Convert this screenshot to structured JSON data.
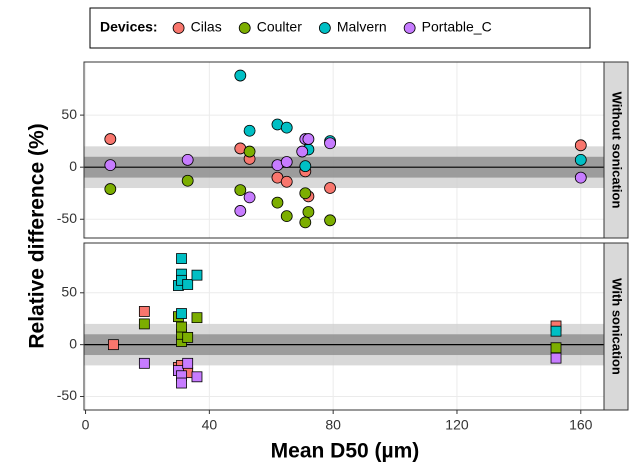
{
  "chart_data": {
    "type": "scatter",
    "legend_title": "Devices:",
    "x_label": "Mean D50 (µm)",
    "y_label": "Relative difference (%)",
    "xlim": [
      -0.5,
      167.5
    ],
    "xticks": [
      0,
      40,
      80,
      120,
      160
    ],
    "reference_bands": [
      20,
      10
    ],
    "reference_line": 0,
    "grid": true,
    "panels": [
      {
        "strip": "Without sonication",
        "marker": "circle",
        "ylim": [
          -68,
          101
        ],
        "yticks": [
          -50,
          0,
          50
        ],
        "series": [
          {
            "name": "Cilas",
            "color": "#F8766D",
            "x": [
              8,
              50,
              53,
              62,
              65,
              71,
              72,
              79,
              160
            ],
            "y": [
              27,
              18,
              8,
              -10,
              -14,
              -4,
              -28,
              -20,
              21
            ]
          },
          {
            "name": "Coulter",
            "color": "#7CAE00",
            "x": [
              8,
              33,
              50,
              53,
              62,
              65,
              71,
              71,
              72,
              79
            ],
            "y": [
              -21,
              -13,
              -22,
              15,
              -34,
              -47,
              -25,
              -53,
              -43,
              -51
            ]
          },
          {
            "name": "Malvern",
            "color": "#00BFC4",
            "x": [
              50,
              53,
              62,
              65,
              71,
              72,
              79,
              160
            ],
            "y": [
              88,
              35,
              41,
              38,
              1,
              17,
              25,
              7
            ]
          },
          {
            "name": "Portable_C",
            "color": "#C77CFF",
            "x": [
              8,
              33,
              50,
              53,
              62,
              65,
              70,
              71,
              72,
              79,
              160
            ],
            "y": [
              2,
              7,
              -42,
              -29,
              2,
              5,
              15,
              27,
              27,
              23,
              -10
            ]
          }
        ]
      },
      {
        "strip": "With sonication",
        "marker": "square",
        "ylim": [
          -63,
          98
        ],
        "yticks": [
          -50,
          0,
          50
        ],
        "series": [
          {
            "name": "Cilas",
            "color": "#F8766D",
            "x": [
              9,
              19,
              30,
              31,
              33,
              152
            ],
            "y": [
              0,
              32,
              -22,
              -20,
              -27,
              18
            ]
          },
          {
            "name": "Coulter",
            "color": "#7CAE00",
            "x": [
              19,
              30,
              31,
              31,
              31,
              33,
              36,
              152
            ],
            "y": [
              20,
              27,
              3,
              10,
              17,
              7,
              26,
              -3
            ]
          },
          {
            "name": "Malvern",
            "color": "#00BFC4",
            "x": [
              30,
              31,
              31,
              31,
              31,
              33,
              36,
              152
            ],
            "y": [
              57,
              83,
              68,
              62,
              30,
              58,
              67,
              13
            ]
          },
          {
            "name": "Portable_C",
            "color": "#C77CFF",
            "x": [
              19,
              30,
              31,
              31,
              33,
              36,
              152
            ],
            "y": [
              -18,
              -25,
              -30,
              -37,
              -18,
              -31,
              -13
            ]
          }
        ]
      }
    ]
  }
}
